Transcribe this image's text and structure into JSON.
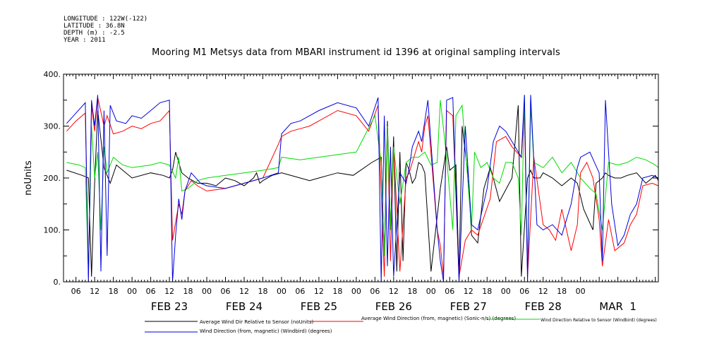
{
  "meta": {
    "longitude": "LONGITUDE : 122W(-122)",
    "latitude": "LATITUDE : 36.8N",
    "depth": "DEPTH (m) : -2.5",
    "year": "YEAR : 2011"
  },
  "chart_data": {
    "type": "line",
    "title": "Mooring M1 Metsys data from MBARI instrument id 1396 at original sampling intervals",
    "ylabel": "noUnits",
    "ylim": [
      0,
      400
    ],
    "yticks": [
      0,
      100,
      200,
      300,
      400
    ],
    "ytick_labels": [
      "0.",
      "100.",
      "200.",
      "300.",
      "400."
    ],
    "xlim": [
      "2011-02-22T02:00",
      "2011-03-02T01:00"
    ],
    "hour_tick_labels": [
      "06",
      "12",
      "18",
      "00",
      "06",
      "12",
      "18",
      "00",
      "06",
      "12",
      "18",
      "00",
      "06",
      "12",
      "18",
      "00",
      "06",
      "12",
      "18",
      "00",
      "06",
      "12",
      "18",
      "00",
      "06",
      "12",
      "18",
      "00"
    ],
    "day_labels": [
      "FEB 23",
      "FEB 24",
      "FEB 25",
      "FEB 26",
      "FEB 27",
      "FEB 28",
      "MAR  1"
    ],
    "grid": false,
    "legend_position": "bottom",
    "series": [
      {
        "name": "Average Wind Dir Relative to Sensor (noUnits)",
        "color": "#000000",
        "x": [
          "2011-02-22T03:00",
          "2011-02-22T08:00",
          "2011-02-22T10:00",
          "2011-02-22T11:00",
          "2011-02-22T12:00",
          "2011-02-22T13:00",
          "2011-02-22T15:00",
          "2011-02-22T17:00",
          "2011-02-22T19:00",
          "2011-02-23T00:00",
          "2011-02-23T06:00",
          "2011-02-23T10:00",
          "2011-02-23T12:00",
          "2011-02-23T13:00",
          "2011-02-23T14:00",
          "2011-02-23T16:00",
          "2011-02-23T18:00",
          "2011-02-23T21:00",
          "2011-02-24T00:00",
          "2011-02-24T03:00",
          "2011-02-24T06:00",
          "2011-02-24T09:00",
          "2011-02-24T12:00",
          "2011-02-24T15:00",
          "2011-02-24T16:00",
          "2011-02-24T17:00",
          "2011-02-24T18:00",
          "2011-02-24T21:00",
          "2011-02-25T00:00",
          "2011-02-25T06:00",
          "2011-02-25T09:00",
          "2011-02-25T12:00",
          "2011-02-25T15:00",
          "2011-02-25T18:00",
          "2011-02-25T23:00",
          "2011-02-26T05:00",
          "2011-02-26T08:00",
          "2011-02-26T09:00",
          "2011-02-26T10:00",
          "2011-02-26T11:00",
          "2011-02-26T12:00",
          "2011-02-26T13:00",
          "2011-02-26T14:00",
          "2011-02-26T15:00",
          "2011-02-26T16:00",
          "2011-02-26T17:00",
          "2011-02-26T18:00",
          "2011-02-26T19:00",
          "2011-02-26T20:00",
          "2011-02-26T21:00",
          "2011-02-26T22:00",
          "2011-02-27T00:00",
          "2011-02-27T03:00",
          "2011-02-27T04:00",
          "2011-02-27T05:00",
          "2011-02-27T06:00",
          "2011-02-27T08:00",
          "2011-02-27T09:00",
          "2011-02-27T10:00",
          "2011-02-27T12:00",
          "2011-02-27T13:00",
          "2011-02-27T15:00",
          "2011-02-27T17:00",
          "2011-02-27T19:00",
          "2011-02-27T20:00",
          "2011-02-27T22:00",
          "2011-02-28T02:00",
          "2011-02-28T04:00",
          "2011-02-28T05:00",
          "2011-02-28T07:00",
          "2011-02-28T08:00",
          "2011-02-28T09:00",
          "2011-02-28T11:00",
          "2011-02-28T12:00",
          "2011-02-28T15:00",
          "2011-02-28T18:00",
          "2011-02-28T21:00",
          "2011-02-28T23:00",
          "2011-03-01T01:00",
          "2011-03-01T04:00",
          "2011-03-01T05:00",
          "2011-03-01T07:00",
          "2011-03-01T08:00",
          "2011-03-01T09:00",
          "2011-03-01T11:00",
          "2011-03-01T13:00",
          "2011-03-01T15:00",
          "2011-03-01T18:00",
          "2011-03-01T21:00",
          "2011-03-02T00:00",
          "2011-03-02T01:00"
        ],
        "y": [
          215,
          205,
          200,
          10,
          190,
          330,
          220,
          190,
          225,
          200,
          210,
          205,
          200,
          215,
          250,
          210,
          200,
          190,
          190,
          185,
          200,
          195,
          185,
          200,
          210,
          190,
          195,
          205,
          210,
          200,
          195,
          200,
          205,
          210,
          205,
          230,
          240,
          50,
          310,
          100,
          280,
          20,
          250,
          40,
          230,
          215,
          190,
          200,
          230,
          225,
          210,
          20,
          180,
          220,
          260,
          215,
          225,
          10,
          300,
          200,
          90,
          75,
          180,
          220,
          200,
          155,
          200,
          340,
          10,
          200,
          215,
          200,
          200,
          210,
          200,
          185,
          200,
          190,
          140,
          100,
          190,
          200,
          210,
          205,
          200,
          200,
          205,
          210,
          190,
          205,
          195
        ]
      },
      {
        "name": "Average Wind Direction (from, magnetic) (Sonic-n/s) (degrees)",
        "color": "#ff0000",
        "x": [
          "2011-02-22T03:00",
          "2011-02-22T06:00",
          "2011-02-22T09:00",
          "2011-02-22T10:00",
          "2011-02-22T11:00",
          "2011-02-22T12:00",
          "2011-02-22T13:00",
          "2011-02-22T15:00",
          "2011-02-22T16:00",
          "2011-02-22T18:00",
          "2011-02-22T21:00",
          "2011-02-23T00:00",
          "2011-02-23T03:00",
          "2011-02-23T06:00",
          "2011-02-23T09:00",
          "2011-02-23T12:00",
          "2011-02-23T13:00",
          "2011-02-23T15:00",
          "2011-02-23T16:00",
          "2011-02-23T17:00",
          "2011-02-23T19:00",
          "2011-02-23T21:00",
          "2011-02-24T00:00",
          "2011-02-24T06:00",
          "2011-02-24T12:00",
          "2011-02-24T18:00",
          "2011-02-24T23:00",
          "2011-02-25T00:00",
          "2011-02-25T03:00",
          "2011-02-25T06:00",
          "2011-02-25T09:00",
          "2011-02-25T12:00",
          "2011-02-25T18:00",
          "2011-02-26T00:00",
          "2011-02-26T04:00",
          "2011-02-26T07:00",
          "2011-02-26T09:00",
          "2011-02-26T10:00",
          "2011-02-26T11:00",
          "2011-02-26T12:00",
          "2011-02-26T14:00",
          "2011-02-26T16:00",
          "2011-02-26T17:00",
          "2011-02-26T18:00",
          "2011-02-26T20:00",
          "2011-02-26T21:00",
          "2011-02-26T22:00",
          "2011-02-26T23:00",
          "2011-02-27T02:00",
          "2011-02-27T03:00",
          "2011-02-27T04:00",
          "2011-02-27T05:00",
          "2011-02-27T07:00",
          "2011-02-27T09:00",
          "2011-02-27T11:00",
          "2011-02-27T13:00",
          "2011-02-27T15:00",
          "2011-02-27T19:00",
          "2011-02-27T21:00",
          "2011-02-28T00:00",
          "2011-02-28T02:00",
          "2011-02-28T05:00",
          "2011-02-28T06:00",
          "2011-02-28T07:00",
          "2011-02-28T09:00",
          "2011-02-28T12:00",
          "2011-02-28T14:00",
          "2011-02-28T16:00",
          "2011-02-28T18:00",
          "2011-02-28T21:00",
          "2011-02-28T23:00",
          "2011-03-01T00:00",
          "2011-03-01T02:00",
          "2011-03-01T04:00",
          "2011-03-01T06:00",
          "2011-03-01T07:00",
          "2011-03-01T09:00",
          "2011-03-01T11:00",
          "2011-03-01T14:00",
          "2011-03-01T16:00",
          "2011-03-01T18:00",
          "2011-03-01T20:00",
          "2011-03-01T23:00",
          "2011-03-02T01:00"
        ],
        "y": [
          290,
          310,
          325,
          10,
          340,
          290,
          355,
          300,
          320,
          285,
          290,
          300,
          295,
          305,
          310,
          330,
          80,
          150,
          130,
          175,
          195,
          185,
          175,
          180,
          190,
          200,
          265,
          280,
          290,
          295,
          300,
          310,
          330,
          320,
          290,
          340,
          10,
          300,
          40,
          260,
          20,
          200,
          210,
          230,
          270,
          250,
          300,
          320,
          100,
          70,
          10,
          330,
          320,
          10,
          80,
          100,
          90,
          160,
          270,
          280,
          260,
          240,
          330,
          10,
          240,
          110,
          100,
          80,
          140,
          60,
          110,
          210,
          230,
          200,
          120,
          30,
          120,
          60,
          75,
          110,
          130,
          185,
          190,
          185
        ]
      },
      {
        "name": "Wind Direction Relative to Sensor (Windbird) (degrees)",
        "color": "#00dd00",
        "x": [
          "2011-02-22T03:00",
          "2011-02-22T07:00",
          "2011-02-22T09:00",
          "2011-02-22T10:00",
          "2011-02-22T11:00",
          "2011-02-22T12:00",
          "2011-02-22T13:00",
          "2011-02-22T14:00",
          "2011-02-22T15:00",
          "2011-02-22T16:00",
          "2011-02-22T18:00",
          "2011-02-22T21:00",
          "2011-02-23T00:00",
          "2011-02-23T06:00",
          "2011-02-23T09:00",
          "2011-02-23T12:00",
          "2011-02-23T14:00",
          "2011-02-23T15:00",
          "2011-02-23T16:00",
          "2011-02-23T18:00",
          "2011-02-23T21:00",
          "2011-02-24T00:00",
          "2011-02-24T06:00",
          "2011-02-24T12:00",
          "2011-02-24T18:00",
          "2011-02-24T23:00",
          "2011-02-25T00:00",
          "2011-02-25T06:00",
          "2011-02-25T12:00",
          "2011-02-25T18:00",
          "2011-02-26T00:00",
          "2011-02-26T06:00",
          "2011-02-26T08:00",
          "2011-02-26T09:00",
          "2011-02-26T10:00",
          "2011-02-26T11:00",
          "2011-02-26T12:00",
          "2011-02-26T14:00",
          "2011-02-26T16:00",
          "2011-02-26T18:00",
          "2011-02-26T20:00",
          "2011-02-26T22:00",
          "2011-02-27T00:00",
          "2011-02-27T02:00",
          "2011-02-27T03:00",
          "2011-02-27T05:00",
          "2011-02-27T07:00",
          "2011-02-27T08:00",
          "2011-02-27T10:00",
          "2011-02-27T12:00",
          "2011-02-27T13:00",
          "2011-02-27T14:00",
          "2011-02-27T16:00",
          "2011-02-27T18:00",
          "2011-02-27T20:00",
          "2011-02-27T22:00",
          "2011-02-28T00:00",
          "2011-02-28T02:00",
          "2011-02-28T04:00",
          "2011-02-28T05:00",
          "2011-02-28T06:00",
          "2011-02-28T07:00",
          "2011-02-28T08:00",
          "2011-02-28T09:00",
          "2011-02-28T12:00",
          "2011-02-28T15:00",
          "2011-02-28T18:00",
          "2011-02-28T21:00",
          "2011-03-01T00:00",
          "2011-03-01T03:00",
          "2011-03-01T05:00",
          "2011-03-01T07:00",
          "2011-03-01T09:00",
          "2011-03-01T12:00",
          "2011-03-01T15:00",
          "2011-03-01T18:00",
          "2011-03-01T21:00",
          "2011-03-02T00:00",
          "2011-03-02T01:00"
        ],
        "y": [
          230,
          225,
          220,
          20,
          300,
          200,
          250,
          100,
          260,
          210,
          240,
          225,
          220,
          225,
          230,
          225,
          200,
          240,
          175,
          180,
          195,
          200,
          205,
          210,
          215,
          220,
          240,
          235,
          240,
          245,
          250,
          320,
          230,
          50,
          300,
          100,
          260,
          150,
          230,
          240,
          240,
          250,
          225,
          230,
          350,
          240,
          100,
          320,
          340,
          180,
          100,
          250,
          220,
          230,
          200,
          190,
          230,
          230,
          200,
          90,
          360,
          20,
          340,
          230,
          220,
          240,
          210,
          230,
          200,
          180,
          170,
          100,
          230,
          225,
          230,
          240,
          235,
          225,
          220
        ]
      },
      {
        "name": "Wind Direction (from, magnetic) (Windbird) (degrees)",
        "color": "#0000dd",
        "x": [
          "2011-02-22T03:00",
          "2011-02-22T06:00",
          "2011-02-22T09:00",
          "2011-02-22T10:00",
          "2011-02-22T11:00",
          "2011-02-22T12:00",
          "2011-02-22T13:00",
          "2011-02-22T14:00",
          "2011-02-22T15:00",
          "2011-02-22T16:00",
          "2011-02-22T17:00",
          "2011-02-22T19:00",
          "2011-02-22T22:00",
          "2011-02-23T00:00",
          "2011-02-23T03:00",
          "2011-02-23T06:00",
          "2011-02-23T09:00",
          "2011-02-23T12:00",
          "2011-02-23T13:00",
          "2011-02-23T14:00",
          "2011-02-23T15:00",
          "2011-02-23T16:00",
          "2011-02-23T17:00",
          "2011-02-23T19:00",
          "2011-02-23T22:00",
          "2011-02-24T00:00",
          "2011-02-24T06:00",
          "2011-02-24T12:00",
          "2011-02-24T18:00",
          "2011-02-24T23:00",
          "2011-02-25T00:00",
          "2011-02-25T03:00",
          "2011-02-25T06:00",
          "2011-02-25T09:00",
          "2011-02-25T12:00",
          "2011-02-25T18:00",
          "2011-02-26T00:00",
          "2011-02-26T04:00",
          "2011-02-26T07:00",
          "2011-02-26T08:00",
          "2011-02-26T09:00",
          "2011-02-26T10:00",
          "2011-02-26T11:00",
          "2011-02-26T12:00",
          "2011-02-26T14:00",
          "2011-02-26T16:00",
          "2011-02-26T17:00",
          "2011-02-26T18:00",
          "2011-02-26T20:00",
          "2011-02-26T21:00",
          "2011-02-26T22:00",
          "2011-02-26T23:00",
          "2011-02-27T02:00",
          "2011-02-27T03:00",
          "2011-02-27T04:00",
          "2011-02-27T05:00",
          "2011-02-27T07:00",
          "2011-02-27T09:00",
          "2011-02-27T11:00",
          "2011-02-27T13:00",
          "2011-02-27T15:00",
          "2011-02-27T18:00",
          "2011-02-27T20:00",
          "2011-02-27T22:00",
          "2011-02-28T00:00",
          "2011-02-28T02:00",
          "2011-02-28T04:00",
          "2011-02-28T05:00",
          "2011-02-28T06:00",
          "2011-02-28T07:00",
          "2011-02-28T08:00",
          "2011-02-28T10:00",
          "2011-02-28T12:00",
          "2011-02-28T15:00",
          "2011-02-28T18:00",
          "2011-02-28T21:00",
          "2011-02-28T23:00",
          "2011-03-01T00:00",
          "2011-03-01T03:00",
          "2011-03-01T06:00",
          "2011-03-01T07:00",
          "2011-03-01T08:00",
          "2011-03-01T10:00",
          "2011-03-01T12:00",
          "2011-03-01T14:00",
          "2011-03-01T16:00",
          "2011-03-01T18:00",
          "2011-03-01T20:00",
          "2011-03-01T23:00",
          "2011-03-02T01:00"
        ],
        "y": [
          305,
          325,
          345,
          0,
          350,
          300,
          360,
          20,
          330,
          50,
          340,
          310,
          305,
          320,
          315,
          330,
          345,
          350,
          0,
          90,
          160,
          120,
          175,
          210,
          190,
          185,
          180,
          190,
          200,
          210,
          285,
          305,
          310,
          320,
          330,
          345,
          335,
          300,
          355,
          0,
          320,
          30,
          260,
          10,
          210,
          190,
          220,
          260,
          290,
          270,
          310,
          350,
          100,
          40,
          0,
          350,
          355,
          0,
          300,
          110,
          100,
          180,
          270,
          300,
          290,
          270,
          250,
          240,
          360,
          0,
          360,
          110,
          100,
          110,
          90,
          150,
          220,
          240,
          250,
          210,
          40,
          350,
          150,
          70,
          90,
          130,
          150,
          200,
          205,
          200
        ]
      }
    ]
  }
}
